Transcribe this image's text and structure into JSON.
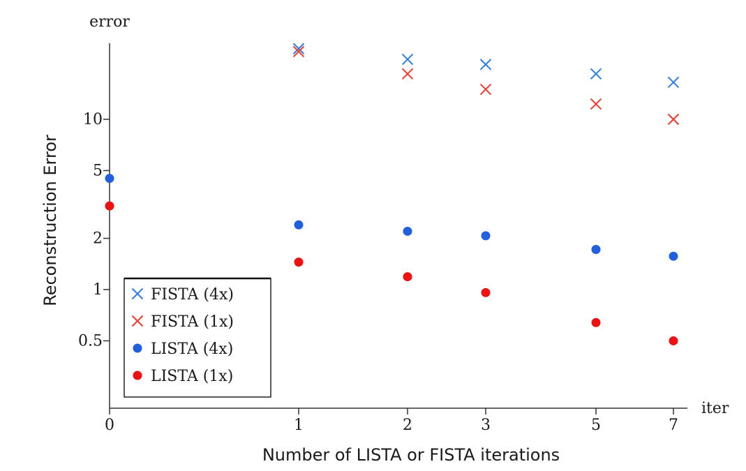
{
  "chart_data": {
    "type": "scatter",
    "xlabel": "Number of LISTA or FISTA iterations",
    "ylabel": "Reconstruction Error",
    "x_axis_end_label": "iter",
    "y_axis_end_label": "error",
    "x_scale": "nonlinear",
    "y_scale": "log",
    "x_ticks": [
      0,
      1,
      2,
      3,
      5,
      7
    ],
    "x_tick_labels": [
      "0",
      "1",
      "2",
      "3",
      "5",
      "7"
    ],
    "y_ticks": [
      0.5,
      1,
      2,
      5,
      10
    ],
    "y_tick_labels": [
      "0.5",
      "1",
      "2",
      "5",
      "10"
    ],
    "ylim": [
      0.2,
      30
    ],
    "grid": false,
    "legend_position": "bottom-left",
    "series": [
      {
        "name": "FISTA (4x)",
        "marker": "x",
        "color": "#2d7fe6",
        "x": [
          1,
          2,
          3,
          5,
          7
        ],
        "y": [
          26,
          22.5,
          21,
          18.5,
          16.5
        ]
      },
      {
        "name": "FISTA (1x)",
        "marker": "x",
        "color": "#f03c2e",
        "x": [
          1,
          2,
          3,
          5,
          7
        ],
        "y": [
          25,
          18.5,
          15,
          12.3,
          10
        ]
      },
      {
        "name": "LISTA (4x)",
        "marker": "dot",
        "color": "#1f5fe0",
        "x": [
          0,
          1,
          2,
          3,
          5,
          7
        ],
        "y": [
          4.5,
          2.4,
          2.2,
          2.07,
          1.72,
          1.57
        ]
      },
      {
        "name": "LISTA (1x)",
        "marker": "dot",
        "color": "#ee1111",
        "x": [
          0,
          1,
          2,
          3,
          5,
          7
        ],
        "y": [
          3.1,
          1.45,
          1.19,
          0.96,
          0.64,
          0.5
        ]
      }
    ]
  }
}
